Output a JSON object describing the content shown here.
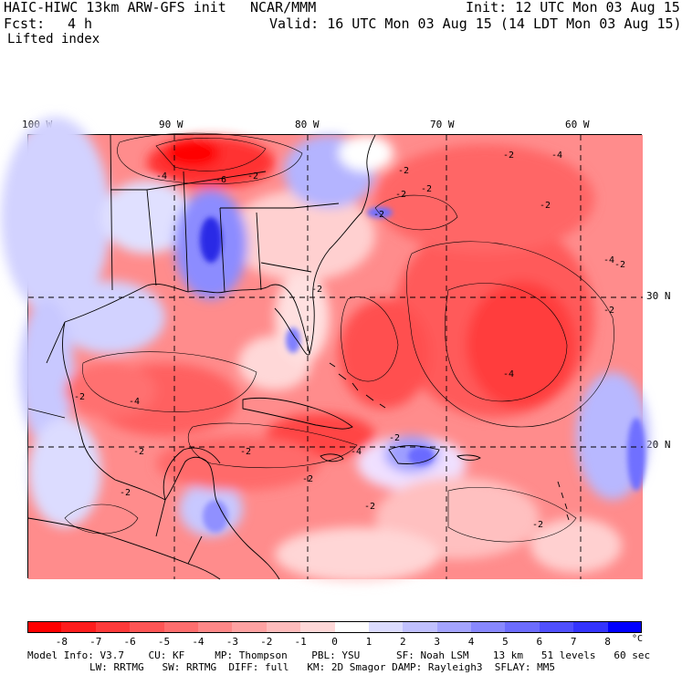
{
  "header": {
    "model": "HAIC-HIWC 13km ARW-GFS init",
    "org": "NCAR/MMM",
    "init": "Init: 12 UTC Mon 03 Aug 15",
    "fcst_label": "Fcst:",
    "fcst_value": "4 h",
    "valid": "Valid: 16 UTC Mon 03 Aug 15 (14 LDT Mon 03 Aug 15)",
    "field": "Lifted index"
  },
  "map": {
    "lon_labels": [
      "100 W",
      "90 W",
      "80 W",
      "70 W",
      "60 W"
    ],
    "lat_labels": [
      "30 N",
      "20 N"
    ],
    "contour_labels": [
      "-4",
      "-6",
      "-2",
      "-2",
      "-2",
      "-2",
      "-4",
      "-4",
      "-2",
      "-2",
      "-4",
      "-2",
      "-2",
      "-4",
      "-2",
      "-2",
      "-2",
      "-4",
      "-2",
      "-2",
      "-2",
      "-2",
      "-2",
      "-2",
      "-2"
    ],
    "colors": {
      "deep_red": "#ff0000",
      "red": "#ff4a4a",
      "light_red": "#ff8c8c",
      "pale_red": "#ffc8c8",
      "white": "#ffffff",
      "pale_blue": "#d2d2ff",
      "blue": "#6e6eff",
      "deep_blue": "#2020e6"
    }
  },
  "colorbar": {
    "labels": [
      "-8",
      "-7",
      "-6",
      "-5",
      "-4",
      "-3",
      "-2",
      "-1",
      "0",
      "1",
      "2",
      "3",
      "4",
      "5",
      "6",
      "7",
      "8"
    ],
    "unit": "°C",
    "colors": [
      "#ff0000",
      "#ff1d1d",
      "#ff3a3a",
      "#ff5555",
      "#ff6e6e",
      "#ff8888",
      "#ffa2a2",
      "#ffbcbc",
      "#ffd8d8",
      "#ffffff",
      "#dcdcff",
      "#c0c0ff",
      "#a4a4ff",
      "#8888ff",
      "#6c6cff",
      "#5050ff",
      "#3434ff",
      "#0000ff"
    ]
  },
  "footer": {
    "line1": "Model Info: V3.7    CU: KF     MP: Thompson    PBL: YSU      SF: Noah LSM    13 km   51 levels   60 sec",
    "line2": "LW: RRTMG   SW: RRTMG  DIFF: full   KM: 2D Smagor DAMP: Rayleigh3  SFLAY: MM5"
  }
}
